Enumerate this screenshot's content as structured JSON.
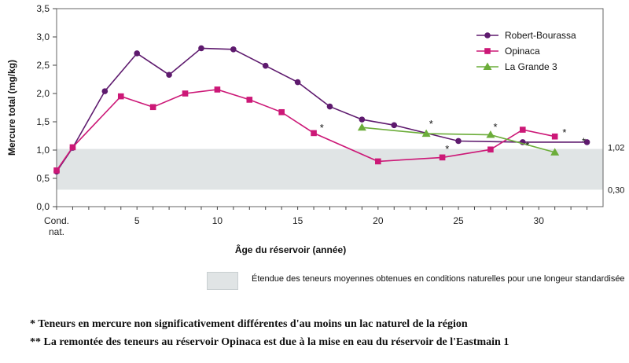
{
  "chart_data": {
    "type": "line",
    "ylabel": "Mercure total (mg/kg)",
    "xlabel": "Âge du réservoir (année)",
    "ylim": [
      0,
      3.5
    ],
    "xlim": [
      0,
      34
    ],
    "y_ticks": [
      {
        "v": 0,
        "label": "0,0"
      },
      {
        "v": 0.5,
        "label": "0,5"
      },
      {
        "v": 1,
        "label": "1,0"
      },
      {
        "v": 1.5,
        "label": "1,5"
      },
      {
        "v": 2,
        "label": "2,0"
      },
      {
        "v": 2.5,
        "label": "2,5"
      },
      {
        "v": 3,
        "label": "3,0"
      },
      {
        "v": 3.5,
        "label": "3,5"
      }
    ],
    "x_ticks": [
      {
        "v": 5,
        "label": "5"
      },
      {
        "v": 10,
        "label": "10"
      },
      {
        "v": 15,
        "label": "15"
      },
      {
        "v": 20,
        "label": "20"
      },
      {
        "v": 25,
        "label": "25"
      },
      {
        "v": 30,
        "label": "30"
      }
    ],
    "x_first_label": [
      "Cond.",
      "nat."
    ],
    "band": {
      "low": 0.3,
      "high": 1.02,
      "low_label": "0,30",
      "high_label": "1,02"
    },
    "series": [
      {
        "name": "Robert-Bourassa",
        "color": "#5e1a6e",
        "marker": "circle",
        "points": [
          [
            0,
            0.62
          ],
          [
            1,
            1.04
          ],
          [
            3,
            2.04
          ],
          [
            5,
            2.71
          ],
          [
            7,
            2.33
          ],
          [
            9,
            2.8
          ],
          [
            11,
            2.78
          ],
          [
            13,
            2.49
          ],
          [
            15,
            2.2
          ],
          [
            17,
            1.77
          ],
          [
            19,
            1.54
          ],
          [
            21,
            1.44
          ],
          [
            25,
            1.16
          ],
          [
            29,
            1.14
          ],
          [
            33,
            1.14
          ]
        ]
      },
      {
        "name": "Opinaca",
        "color": "#cc1877",
        "marker": "square",
        "points": [
          [
            0,
            0.64
          ],
          [
            1,
            1.05
          ],
          [
            4,
            1.95
          ],
          [
            6,
            1.76
          ],
          [
            8,
            2.0
          ],
          [
            10,
            2.07
          ],
          [
            12,
            1.89
          ],
          [
            14,
            1.67
          ],
          [
            16,
            1.3
          ],
          [
            20,
            0.8
          ],
          [
            24,
            0.87
          ],
          [
            27,
            1.01
          ],
          [
            29,
            1.36
          ],
          [
            31,
            1.24
          ]
        ]
      },
      {
        "name": "La Grande 3",
        "color": "#6cad3a",
        "marker": "triangle",
        "points": [
          [
            19,
            1.4
          ],
          [
            23,
            1.29
          ],
          [
            27,
            1.27
          ],
          [
            31,
            0.96
          ]
        ]
      }
    ],
    "stars": [
      {
        "x": 16.5,
        "y": 1.4,
        "label": "*"
      },
      {
        "x": 23.3,
        "y": 1.47,
        "label": "*"
      },
      {
        "x": 24.3,
        "y": 1.03,
        "label": "*"
      },
      {
        "x": 27.3,
        "y": 1.42,
        "label": "*"
      },
      {
        "x": 29.3,
        "y": 1.09,
        "label": "*"
      },
      {
        "x": 31.6,
        "y": 1.32,
        "label": "*"
      },
      {
        "x": 32.8,
        "y": 1.16,
        "label": "*"
      }
    ]
  },
  "band_legend_text": "Étendue des teneurs moyennes obtenues en conditions naturelles pour une longeur standardisée",
  "footnotes": [
    "*   Teneurs en mercure non significativement différentes d'au moins un lac naturel de la région",
    "** La remontée des teneurs au réservoir Opinaca est due à la mise en eau du réservoir de l'Eastmain 1"
  ]
}
